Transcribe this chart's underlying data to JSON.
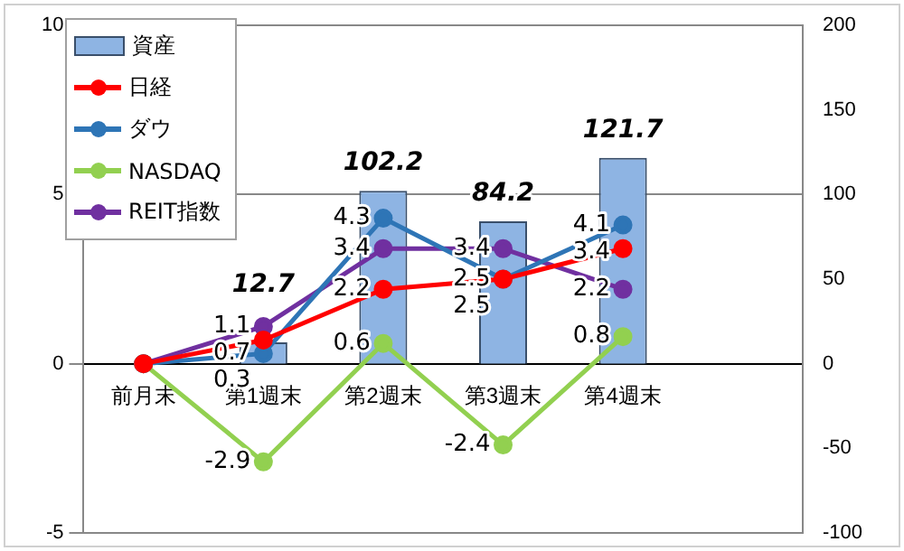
{
  "chart_data": {
    "type": "line",
    "categories": [
      "前月末",
      "第1週末",
      "第2週末",
      "第3週末",
      "第4週末",
      null
    ],
    "series": [
      {
        "name": "資産",
        "type": "bar",
        "axis": "y2",
        "color": "#8eb4e3",
        "values": [
          null,
          12.7,
          102.2,
          84.2,
          121.7,
          null
        ],
        "value_labels": [
          null,
          "12.7",
          "102.2",
          "84.2",
          "121.7",
          null
        ]
      },
      {
        "name": "日経",
        "color": "#ff0000",
        "values": [
          0,
          0.7,
          2.2,
          2.5,
          3.4,
          null
        ],
        "value_labels": [
          null,
          "0.7",
          "2.2",
          "2.5",
          "3.4",
          null
        ]
      },
      {
        "name": "ダウ",
        "color": "#2e75b6",
        "values": [
          0,
          0.3,
          4.3,
          2.5,
          4.1,
          null
        ],
        "value_labels": [
          null,
          "0.3",
          "4.3",
          "2.5",
          "4.1",
          null
        ]
      },
      {
        "name": "NASDAQ",
        "color": "#92d050",
        "values": [
          0,
          -2.9,
          0.6,
          -2.4,
          0.8,
          null
        ],
        "value_labels": [
          null,
          "-2.9",
          "0.6",
          "-2.4",
          "0.8",
          null
        ]
      },
      {
        "name": "REIT指数",
        "color": "#7030a0",
        "values": [
          0,
          1.1,
          3.4,
          3.4,
          2.2,
          null
        ],
        "value_labels": [
          null,
          "1.1",
          "3.4",
          "3.4",
          "2.2",
          null
        ]
      }
    ],
    "ylim": [
      -5,
      10
    ],
    "yticks": [
      -5,
      0,
      5,
      10
    ],
    "y2lim": [
      -100,
      200
    ],
    "y2ticks": [
      -100,
      -50,
      0,
      50,
      100,
      150,
      200
    ],
    "grid": "y",
    "legend": "top left",
    "marker": "circle",
    "line_style": "solid"
  }
}
